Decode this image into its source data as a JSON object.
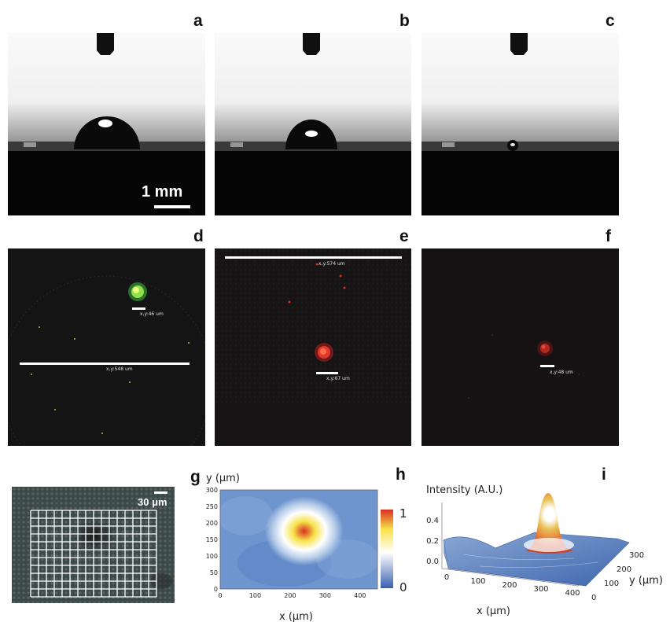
{
  "panel_labels": {
    "a": "a",
    "b": "b",
    "c": "c",
    "d": "d",
    "e": "e",
    "f": "f",
    "g": "g",
    "h": "h",
    "i": "i"
  },
  "scale_bars": {
    "a": "1 mm",
    "d_small": "x,y:46 um",
    "d_large": "x,y:548 um",
    "e_large": "x,y:574 um",
    "e_small": "x,y:67 um",
    "f": "x,y:48 um",
    "grid": "30 μm"
  },
  "chart_data": [
    {
      "type": "heatmap",
      "panel": "h",
      "xlabel": "x  (μm)",
      "ylabel": "y  (μm)",
      "xlim": [
        0,
        450
      ],
      "ylim": [
        0,
        300
      ],
      "xticks": [
        "0",
        "100",
        "200",
        "300",
        "400"
      ],
      "yticks": [
        "0",
        "50",
        "100",
        "150",
        "200",
        "250",
        "300"
      ],
      "colorbar": {
        "min": 0,
        "max": 1,
        "labels": [
          "0",
          "1"
        ],
        "colors": [
          "#3a5fb0",
          "#ffffff",
          "#f7e24a",
          "#d7301f"
        ]
      },
      "peak": {
        "x": 240,
        "y": 175,
        "value": 1
      }
    },
    {
      "type": "surface",
      "panel": "i",
      "zlabel": "Intensity (A.U.)",
      "xlabel": "x  (μm)",
      "ylabel": "y  (μm)",
      "zticks": [
        "0.0",
        "0.2",
        "0.4"
      ],
      "xticks": [
        "0",
        "100",
        "200",
        "300",
        "400"
      ],
      "yticks": [
        "0",
        "100",
        "200",
        "300"
      ],
      "peak": {
        "x": 240,
        "y": 175,
        "z": 0.55
      }
    }
  ]
}
